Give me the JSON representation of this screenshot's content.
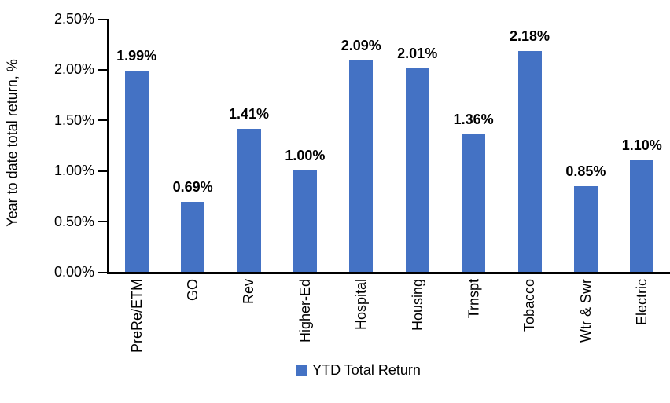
{
  "chart_data": {
    "type": "bar",
    "title": "",
    "xlabel": "",
    "ylabel": "Year to date total return, %",
    "categories": [
      "PreRe/ETM",
      "GO",
      "Rev",
      "Higher-Ed",
      "Hospital",
      "Housing",
      "Trnspt",
      "Tobacco",
      "Wtr & Swr",
      "Electric"
    ],
    "series": [
      {
        "name": "YTD Total Return",
        "values": [
          1.99,
          0.69,
          1.41,
          1.0,
          2.09,
          2.01,
          1.36,
          2.18,
          0.85,
          1.1
        ],
        "data_labels": [
          "1.99%",
          "0.69%",
          "1.41%",
          "1.00%",
          "2.09%",
          "2.01%",
          "1.36%",
          "2.18%",
          "0.85%",
          "1.10%"
        ]
      }
    ],
    "ylim": [
      0,
      2.5
    ],
    "y_tick_labels": [
      "0.00%",
      "0.50%",
      "1.00%",
      "1.50%",
      "2.00%",
      "2.50%"
    ],
    "grid": false,
    "legend": {
      "position": "bottom",
      "entries": [
        "YTD Total Return"
      ]
    },
    "colors": {
      "bar": "#4472C4",
      "axis": "#000000",
      "text": "#000000"
    }
  }
}
